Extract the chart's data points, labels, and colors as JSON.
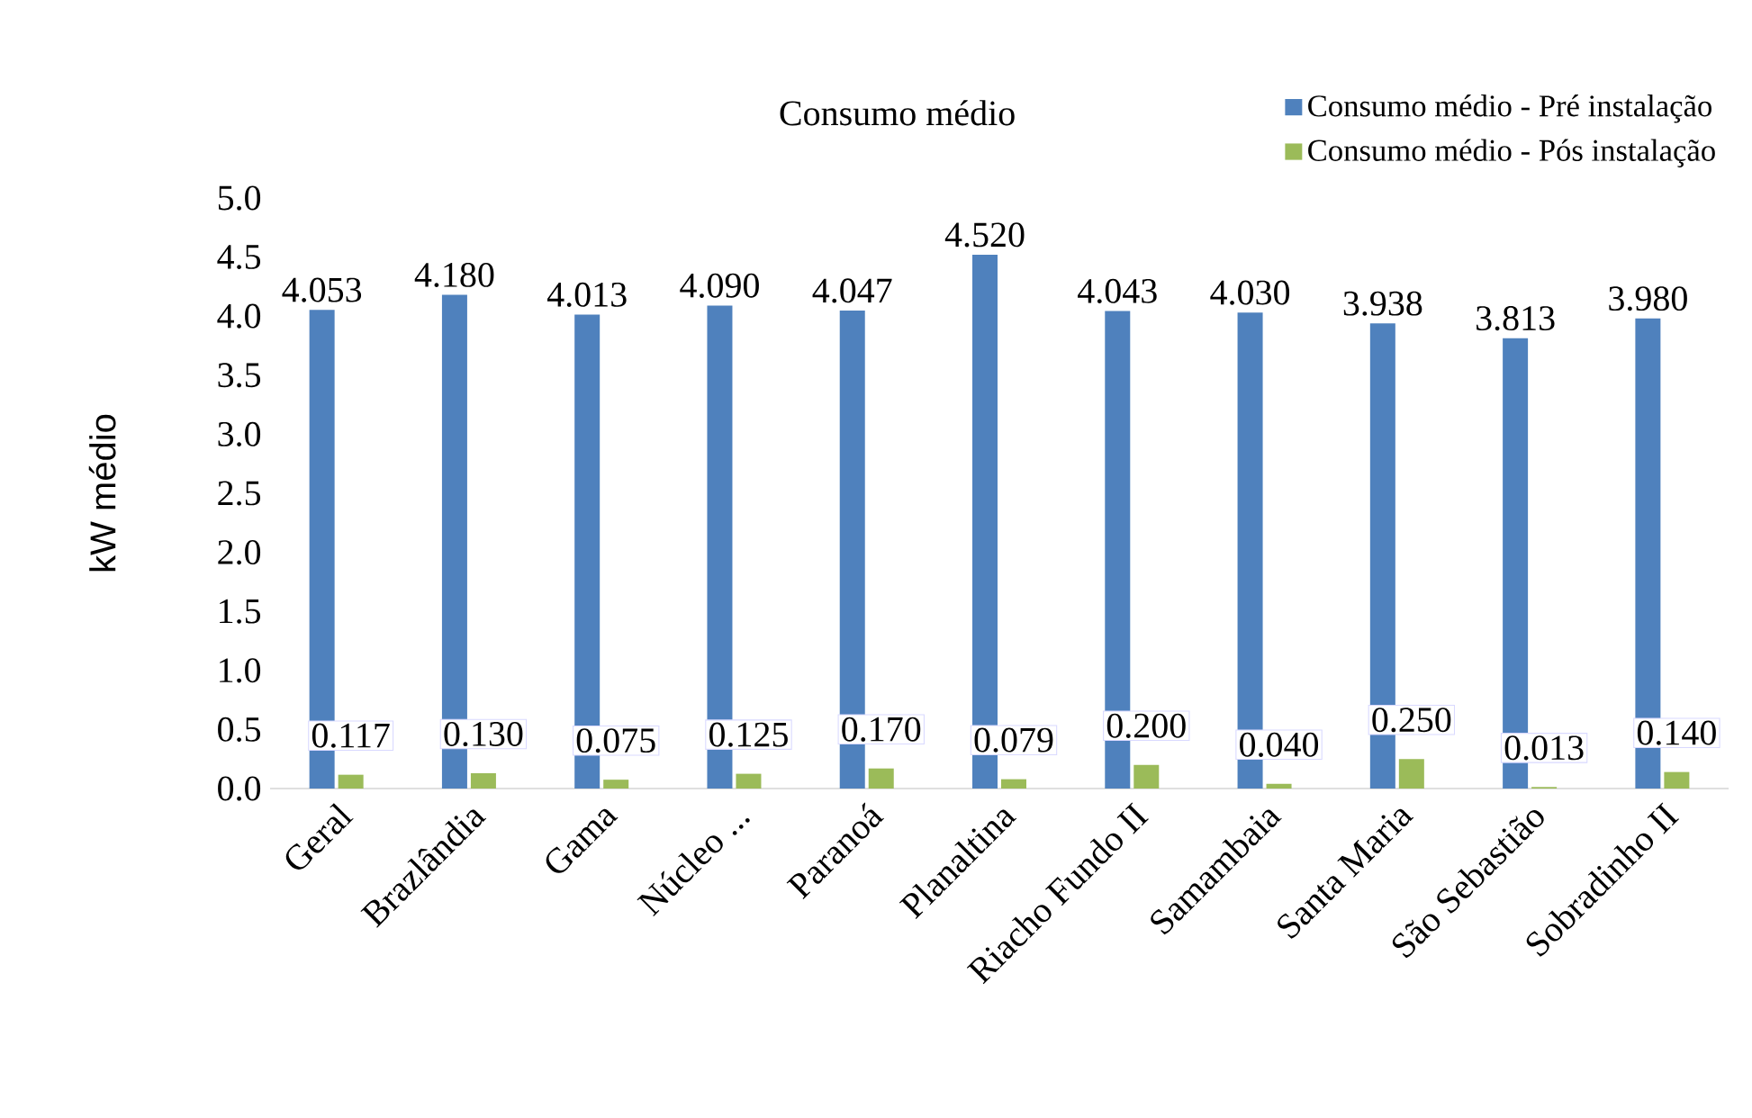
{
  "chart_data": {
    "type": "bar",
    "title": "Consumo médio",
    "ylabel": "kW médio",
    "categories": [
      "Geral",
      "Brazlândia",
      "Gama",
      "Núcleo ...",
      "Paranoá",
      "Planaltina",
      "Riacho Fundo II",
      "Samambaia",
      "Santa Maria",
      "São Sebastião",
      "Sobradinho II"
    ],
    "series": [
      {
        "name": "Consumo médio - Pré instalação",
        "color": "#4f81bd",
        "values": [
          4.053,
          4.18,
          4.013,
          4.09,
          4.047,
          4.52,
          4.043,
          4.03,
          3.938,
          3.813,
          3.98
        ],
        "value_labels": [
          "4.053",
          "4.180",
          "4.013",
          "4.090",
          "4.047",
          "4.520",
          "4.043",
          "4.030",
          "3.938",
          "3.813",
          "3.980"
        ]
      },
      {
        "name": "Consumo médio - Pós instalação",
        "color": "#9bbb59",
        "values": [
          0.117,
          0.13,
          0.075,
          0.125,
          0.17,
          0.079,
          0.2,
          0.04,
          0.25,
          0.013,
          0.14
        ],
        "value_labels": [
          "0.117",
          "0.130",
          "0.075",
          "0.125",
          "0.170",
          "0.079",
          "0.200",
          "0.040",
          "0.250",
          "0.013",
          "0.140"
        ]
      }
    ],
    "ylim": [
      0,
      5
    ],
    "yticks": [
      {
        "value": 0,
        "label": "0.0"
      },
      {
        "value": 0.5,
        "label": "0.5"
      },
      {
        "value": 1,
        "label": "1.0"
      },
      {
        "value": 1.5,
        "label": "1.5"
      },
      {
        "value": 2,
        "label": "2.0"
      },
      {
        "value": 2.5,
        "label": "2.5"
      },
      {
        "value": 3,
        "label": "3.0"
      },
      {
        "value": 3.5,
        "label": "3.5"
      },
      {
        "value": 4,
        "label": "4.0"
      },
      {
        "value": 4.5,
        "label": "4.5"
      },
      {
        "value": 5,
        "label": "5.0"
      }
    ],
    "legend": "top right"
  }
}
